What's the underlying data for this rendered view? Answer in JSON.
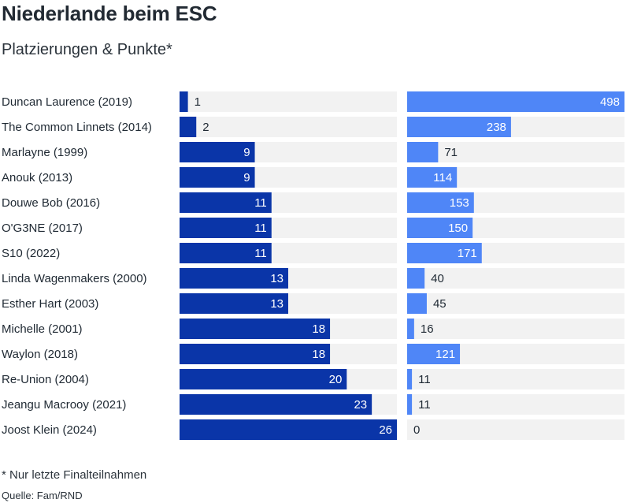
{
  "chart_data": {
    "type": "bar",
    "title": "Niederlande beim ESC",
    "subtitle": "Platzierungen & Punkte*",
    "categories": [
      "Duncan Laurence (2019)",
      "The Common Linnets (2014)",
      "Marlayne (1999)",
      "Anouk (2013)",
      "Douwe Bob (2016)",
      "O'G3NE (2017)",
      "S10 (2022)",
      "Linda Wagenmakers (2000)",
      "Esther Hart (2003)",
      "Michelle (2001)",
      "Waylon (2018)",
      "Re-Union (2004)",
      "Jeangu Macrooy (2021)",
      "Joost Klein (2024)"
    ],
    "series": [
      {
        "values": [
          1,
          2,
          9,
          9,
          11,
          11,
          11,
          13,
          13,
          18,
          18,
          20,
          23,
          26
        ],
        "color": "#0a35a8",
        "max": 26
      },
      {
        "values": [
          498,
          238,
          71,
          114,
          153,
          150,
          171,
          40,
          45,
          16,
          121,
          11,
          11,
          0
        ],
        "color": "#4f86f7",
        "max": 498
      }
    ],
    "track_color": "#f2f2f2",
    "footnote": "* Nur letzte Finalteilnahmen",
    "source": "Quelle: Fam/RND"
  }
}
